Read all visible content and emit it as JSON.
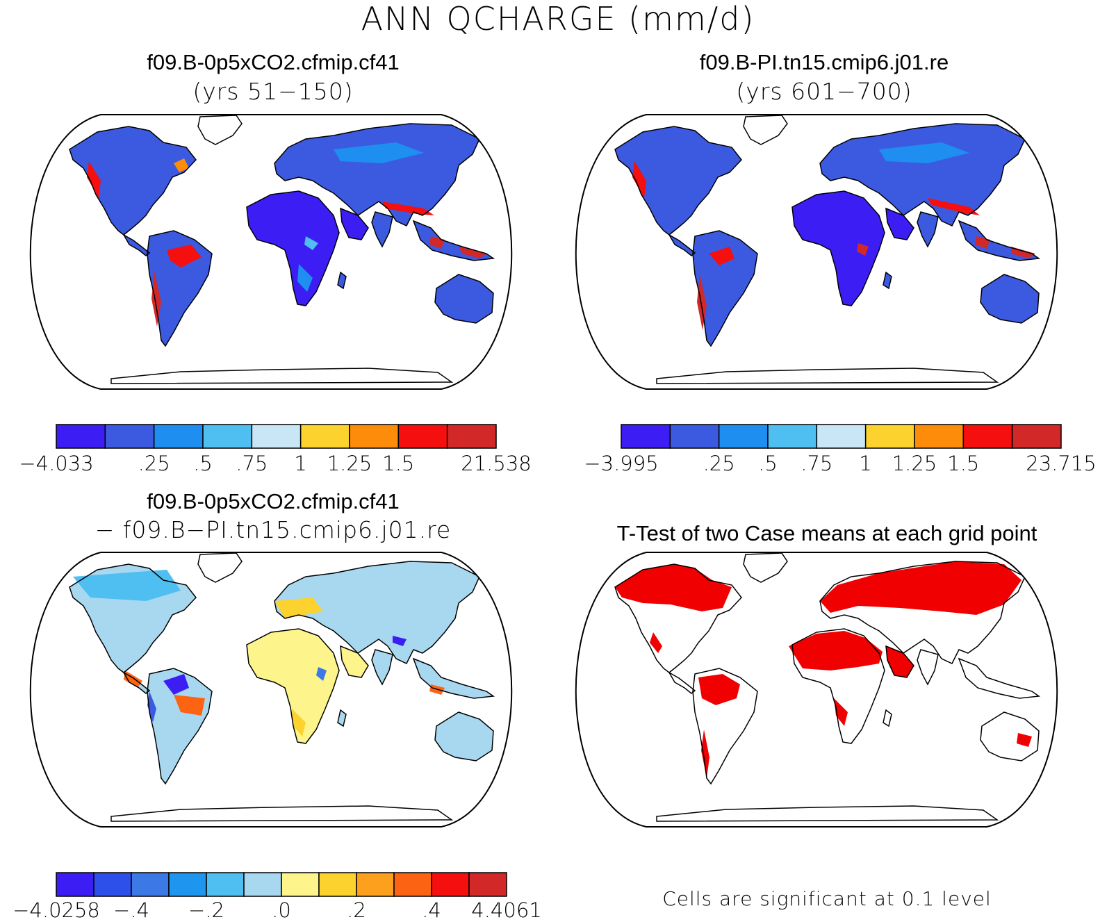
{
  "title": "ANN QCHARGE (mm/d)",
  "panels": [
    {
      "id": "case1",
      "title": "f09.B-0p5xCO2.cfmip.cf41",
      "subtitle": "(yrs 51−150)"
    },
    {
      "id": "case2",
      "title": "f09.B-PI.tn15.cmip6.j01.re",
      "subtitle": "(yrs 601−700)"
    },
    {
      "id": "diff",
      "title": "f09.B-0p5xCO2.cfmip.cf41",
      "subtitle": "− f09.B−PI.tn15.cmip6.j01.re"
    },
    {
      "id": "ttest",
      "title": "T-Test of two Case means at each grid point",
      "subtitle": ""
    }
  ],
  "colorbars": {
    "case1": {
      "colors": [
        "#3c1ef5",
        "#3c5ae0",
        "#1e8ff0",
        "#4fbef0",
        "#c8e6f5",
        "#fcd22e",
        "#fc8c0a",
        "#f50f0f",
        "#d22828"
      ],
      "labels": [
        "−4.033",
        ".25",
        ".5",
        ".75",
        "1",
        "1.25",
        "1.5",
        "21.538"
      ],
      "label_at_boundary": [
        0,
        2,
        3,
        4,
        5,
        6,
        7,
        9
      ]
    },
    "case2": {
      "colors": [
        "#3c1ef5",
        "#3c5ae0",
        "#1e8ff0",
        "#4fbef0",
        "#c8e6f5",
        "#fcd22e",
        "#fc8c0a",
        "#f50f0f",
        "#d22828"
      ],
      "labels": [
        "−3.995",
        ".25",
        ".5",
        ".75",
        "1",
        "1.25",
        "1.5",
        "23.715"
      ],
      "label_at_boundary": [
        0,
        2,
        3,
        4,
        5,
        6,
        7,
        9
      ]
    },
    "diff": {
      "colors": [
        "#3c1ef5",
        "#2d50eb",
        "#3c78e6",
        "#1e96f0",
        "#4fbef0",
        "#a8d8f0",
        "#fdf58c",
        "#fcd22e",
        "#fca01e",
        "#fc6414",
        "#f50f0f",
        "#d22828"
      ],
      "labels": [
        "−4.0258",
        "−.4",
        "−.2",
        ".0",
        ".2",
        ".4",
        "4.4061"
      ],
      "label_at_boundary": [
        0,
        2,
        4,
        6,
        8,
        10,
        12
      ]
    }
  },
  "significance_note": "Cells are significant at 0.1 level",
  "sig_color": "#f00000"
}
